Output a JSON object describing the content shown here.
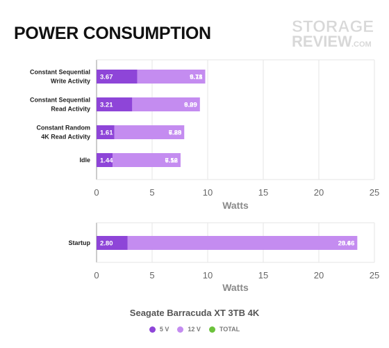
{
  "title": "POWER CONSUMPTION",
  "logo": {
    "line1": "STORAGE",
    "line2": "REVIEW",
    "suffix": ".COM"
  },
  "colors": {
    "v5": "#8e45d8",
    "v12": "#c48cf0",
    "total": "#6cc23c",
    "grid": "#e6e6e6",
    "axis": "#999999"
  },
  "legend": {
    "title": "Seagate Barracuda XT 3TB 4K",
    "items": [
      {
        "label": "5 V",
        "color": "#8e45d8"
      },
      {
        "label": "12 V",
        "color": "#c48cf0"
      },
      {
        "label": "TOTAL",
        "color": "#6cc23c"
      }
    ]
  },
  "chart_data": [
    {
      "type": "bar",
      "orientation": "horizontal",
      "stacked": true,
      "xlabel": "Watts",
      "xlim": [
        0,
        25
      ],
      "xticks": [
        0,
        5,
        10,
        15,
        20,
        25
      ],
      "grid": true,
      "categories": [
        [
          "Constant Sequential",
          "Write Activity"
        ],
        [
          "Constant Sequential",
          "Read Activity"
        ],
        [
          "Constant Random",
          "4K Read Activity"
        ],
        [
          "Idle"
        ]
      ],
      "series": [
        {
          "name": "5 V",
          "values": [
            3.67,
            3.21,
            1.61,
            1.44
          ]
        },
        {
          "name": "12 V",
          "values": [
            6.11,
            6.09,
            6.28,
            6.12
          ]
        },
        {
          "name": "TOTAL",
          "values": [
            9.78,
            9.29,
            7.89,
            7.56
          ]
        }
      ],
      "labels": {
        "v5": [
          "3.67",
          "3.21",
          "1.61",
          "1.44"
        ],
        "v12": [
          "6.11",
          "6.09",
          "6.28",
          "6.12"
        ],
        "total": [
          "9.78",
          "9.29",
          "7.89",
          "7.56"
        ]
      }
    },
    {
      "type": "bar",
      "orientation": "horizontal",
      "stacked": true,
      "xlabel": "Watts",
      "xlim": [
        0,
        25
      ],
      "xticks": [
        0,
        5,
        10,
        15,
        20,
        25
      ],
      "grid": true,
      "categories": [
        [
          "Startup"
        ]
      ],
      "series": [
        {
          "name": "5 V",
          "values": [
            2.8
          ]
        },
        {
          "name": "12 V",
          "values": [
            20.66
          ]
        },
        {
          "name": "TOTAL",
          "values": [
            23.46
          ]
        }
      ],
      "labels": {
        "v5": [
          "2.80"
        ],
        "v12": [
          "20.66"
        ],
        "total": [
          "23.46"
        ]
      }
    }
  ]
}
